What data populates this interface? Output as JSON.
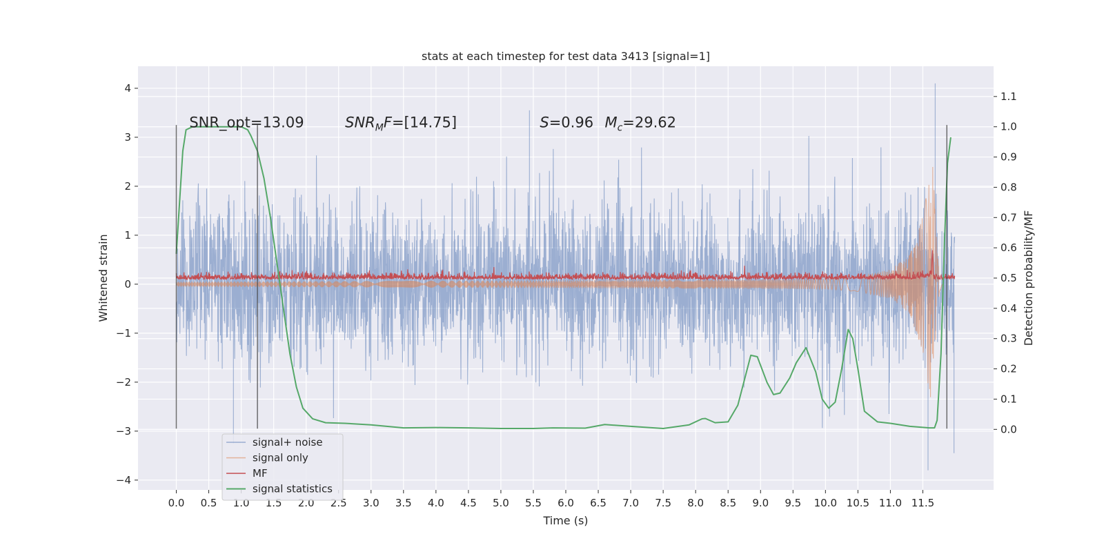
{
  "chart_data": {
    "type": "line",
    "title": "stats at each timestep for test data 3413 [signal=1]",
    "xlabel": "Time (s)",
    "ylabel": "Whitened strain",
    "y2label": "Detection probability/MF",
    "xlim": [
      -0.59,
      12.59
    ],
    "ylim": [
      -4.2,
      4.45
    ],
    "y2lim": [
      -0.2,
      1.2
    ],
    "x_ticks": [
      0.0,
      0.5,
      1.0,
      1.5,
      2.0,
      2.5,
      3.0,
      3.5,
      4.0,
      4.5,
      5.0,
      5.5,
      6.0,
      6.5,
      7.0,
      7.5,
      8.0,
      8.5,
      9.0,
      9.5,
      10.0,
      10.5,
      11.0,
      11.5
    ],
    "x_tick_labels": [
      "0.0",
      "0.5",
      "1.0",
      "1.5",
      "2.0",
      "2.5",
      "3.0",
      "3.5",
      "4.0",
      "4.5",
      "5.0",
      "5.5",
      "6.0",
      "6.5",
      "7.0",
      "7.5",
      "8.0",
      "8.5",
      "9.0",
      "9.5",
      "10.0",
      "10.5",
      "11.0",
      "11.5"
    ],
    "y_ticks": [
      4,
      3,
      2,
      1,
      0,
      -1,
      -2,
      -3,
      -4
    ],
    "y_tick_labels": [
      "4",
      "3",
      "2",
      "1",
      "0",
      "−1",
      "−2",
      "−3",
      "−4"
    ],
    "y2_ticks": [
      1.1,
      1.0,
      0.9,
      0.8,
      0.7,
      0.6,
      0.5,
      0.4,
      0.3,
      0.2,
      0.1,
      0.0
    ],
    "y2_tick_labels": [
      "1.1",
      "1.0",
      "0.9",
      "0.8",
      "0.7",
      "0.6",
      "0.5",
      "0.4",
      "0.3",
      "0.2",
      "0.1",
      "0.0"
    ],
    "grid": true,
    "legend_position": "lower-left",
    "annotations": [
      {
        "text": "SNR_opt=13.09",
        "x": 0.2,
        "y": 3.2
      },
      {
        "text": "SNR",
        "sub": "M",
        "rest": "F=[14.75]",
        "x": 2.6,
        "y": 3.2
      },
      {
        "text": "S",
        "rest": "=0.96",
        "x": 5.6,
        "y": 3.2
      },
      {
        "text": "M",
        "sub": "c",
        "rest": "=29.62",
        "x": 6.6,
        "y": 3.2
      }
    ],
    "vertical_lines": [
      {
        "x": 0.0,
        "y_range": [
          -2.95,
          3.25
        ]
      },
      {
        "x": 1.25,
        "y_range": [
          -2.95,
          3.25
        ]
      },
      {
        "x": 11.87,
        "y_range": [
          -2.95,
          3.25
        ]
      }
    ],
    "series": [
      {
        "name": "signal+ noise",
        "color": "#4c72b0",
        "opacity": 0.5,
        "x_start": 0.0,
        "x_end": 11.99,
        "typical_range": [
          -1.4,
          1.4
        ],
        "y_extremes": [
          4.1,
          -3.8
        ],
        "axis": "left"
      },
      {
        "name": "signal only",
        "color": "#dd8452",
        "opacity": 0.55,
        "x": [
          0.0,
          10.0,
          10.5,
          11.0,
          11.3,
          11.5,
          11.6,
          11.65,
          11.7,
          11.75,
          11.8
        ],
        "amplitude": [
          0.05,
          0.1,
          0.15,
          0.3,
          0.6,
          1.4,
          2.2,
          2.5,
          1.2,
          0.2,
          0.0
        ],
        "axis": "left"
      },
      {
        "name": "MF",
        "color": "#c44e52",
        "x_start": 0.0,
        "x_end": 11.99,
        "baseline": 0.5,
        "noise_amp": 0.01,
        "peak": {
          "x": 11.65,
          "y": 0.565
        },
        "axis": "right"
      },
      {
        "name": "signal statistics",
        "color": "#55a868",
        "x": [
          0.0,
          0.05,
          0.1,
          0.15,
          0.25,
          0.4,
          0.7,
          1.0,
          1.1,
          1.15,
          1.25,
          1.35,
          1.45,
          1.55,
          1.65,
          1.75,
          1.85,
          1.95,
          2.1,
          2.3,
          2.6,
          3.0,
          3.5,
          4.0,
          4.5,
          5.0,
          5.5,
          5.8,
          6.3,
          6.6,
          7.0,
          7.5,
          7.9,
          8.1,
          8.15,
          8.3,
          8.5,
          8.65,
          8.85,
          8.95,
          9.1,
          9.2,
          9.3,
          9.45,
          9.55,
          9.7,
          9.85,
          9.95,
          10.05,
          10.15,
          10.25,
          10.35,
          10.42,
          10.5,
          10.6,
          10.8,
          11.0,
          11.3,
          11.6,
          11.68,
          11.72,
          11.78,
          11.83,
          11.88,
          11.93
        ],
        "y": [
          0.58,
          0.75,
          0.92,
          0.99,
          1.0,
          1.0,
          1.0,
          1.0,
          0.99,
          0.97,
          0.92,
          0.83,
          0.7,
          0.55,
          0.4,
          0.25,
          0.14,
          0.07,
          0.035,
          0.022,
          0.02,
          0.015,
          0.005,
          0.006,
          0.005,
          0.003,
          0.003,
          0.005,
          0.004,
          0.016,
          0.01,
          0.003,
          0.015,
          0.035,
          0.036,
          0.022,
          0.025,
          0.08,
          0.245,
          0.24,
          0.155,
          0.115,
          0.12,
          0.17,
          0.22,
          0.27,
          0.19,
          0.1,
          0.07,
          0.09,
          0.2,
          0.33,
          0.3,
          0.2,
          0.06,
          0.025,
          0.02,
          0.01,
          0.005,
          0.005,
          0.03,
          0.25,
          0.6,
          0.88,
          0.965
        ],
        "axis": "right"
      }
    ]
  }
}
